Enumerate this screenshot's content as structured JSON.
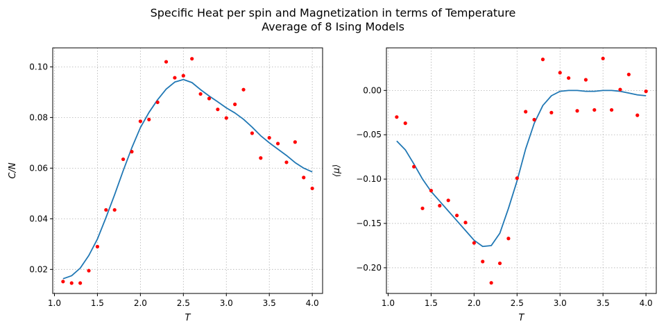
{
  "figure": {
    "title_line1": "Specific Heat per spin and Magnetization in terms of Temperature",
    "title_line2": "Average of 8 Ising Models"
  },
  "colors": {
    "fit_line": "#1f77b4",
    "points": "#ff0000",
    "grid": "#b0b0b0"
  },
  "chart_data": [
    {
      "type": "scatter",
      "xlabel": "T",
      "ylabel": "C/N",
      "xlim": [
        0.98,
        4.12
      ],
      "ylim": [
        0.0105,
        0.1075
      ],
      "xticks": [
        1.0,
        1.5,
        2.0,
        2.5,
        3.0,
        3.5,
        4.0
      ],
      "xtick_labels": [
        "1.0",
        "1.5",
        "2.0",
        "2.5",
        "3.0",
        "3.5",
        "4.0"
      ],
      "yticks": [
        0.02,
        0.04,
        0.06,
        0.08,
        0.1
      ],
      "ytick_labels": [
        "0.02",
        "0.04",
        "0.06",
        "0.08",
        "0.10"
      ],
      "grid": true,
      "series": [
        {
          "kind": "points",
          "x": [
            1.1,
            1.2,
            1.3,
            1.4,
            1.5,
            1.6,
            1.7,
            1.8,
            1.9,
            2.0,
            2.1,
            2.2,
            2.3,
            2.4,
            2.5,
            2.6,
            2.7,
            2.8,
            2.9,
            3.0,
            3.1,
            3.2,
            3.3,
            3.4,
            3.5,
            3.6,
            3.7,
            3.8,
            3.9,
            4.0
          ],
          "y": [
            0.0152,
            0.0146,
            0.0146,
            0.0195,
            0.029,
            0.0435,
            0.0435,
            0.0635,
            0.0665,
            0.0785,
            0.0792,
            0.086,
            0.102,
            0.0957,
            0.0965,
            0.1032,
            0.0893,
            0.0875,
            0.0832,
            0.0798,
            0.0852,
            0.091,
            0.0738,
            0.064,
            0.072,
            0.0697,
            0.0623,
            0.0703,
            0.0563,
            0.052
          ]
        },
        {
          "kind": "line",
          "x": [
            1.1,
            1.2,
            1.3,
            1.4,
            1.5,
            1.6,
            1.7,
            1.8,
            1.9,
            2.0,
            2.1,
            2.2,
            2.3,
            2.4,
            2.5,
            2.6,
            2.7,
            2.8,
            2.9,
            3.0,
            3.1,
            3.2,
            3.3,
            3.4,
            3.5,
            3.6,
            3.7,
            3.8,
            3.9,
            4.0
          ],
          "y": [
            0.0163,
            0.0175,
            0.0205,
            0.0255,
            0.032,
            0.0405,
            0.0495,
            0.059,
            0.068,
            0.076,
            0.082,
            0.087,
            0.0912,
            0.094,
            0.095,
            0.0938,
            0.091,
            0.0885,
            0.0862,
            0.0838,
            0.0818,
            0.0793,
            0.0762,
            0.0728,
            0.07,
            0.0675,
            0.065,
            0.0622,
            0.06,
            0.0585
          ]
        }
      ]
    },
    {
      "type": "scatter",
      "xlabel": "T",
      "ylabel": "⟨μ⟩",
      "xlim": [
        0.98,
        4.12
      ],
      "ylim": [
        -0.229,
        0.048
      ],
      "xticks": [
        1.0,
        1.5,
        2.0,
        2.5,
        3.0,
        3.5,
        4.0
      ],
      "xtick_labels": [
        "1.0",
        "1.5",
        "2.0",
        "2.5",
        "3.0",
        "3.5",
        "4.0"
      ],
      "yticks": [
        -0.2,
        -0.15,
        -0.1,
        -0.05,
        0.0
      ],
      "ytick_labels": [
        "−0.20",
        "−0.15",
        "−0.10",
        "−0.05",
        "0.00"
      ],
      "grid": true,
      "series": [
        {
          "kind": "points",
          "x": [
            1.1,
            1.2,
            1.3,
            1.4,
            1.5,
            1.6,
            1.7,
            1.8,
            1.9,
            2.0,
            2.1,
            2.2,
            2.3,
            2.4,
            2.5,
            2.6,
            2.7,
            2.8,
            2.9,
            3.0,
            3.1,
            3.2,
            3.3,
            3.4,
            3.5,
            3.6,
            3.7,
            3.8,
            3.9,
            4.0
          ],
          "y": [
            -0.03,
            -0.037,
            -0.086,
            -0.133,
            -0.113,
            -0.13,
            -0.124,
            -0.141,
            -0.149,
            -0.172,
            -0.193,
            -0.217,
            -0.195,
            -0.167,
            -0.099,
            -0.024,
            -0.033,
            0.035,
            -0.025,
            0.02,
            0.014,
            -0.023,
            0.012,
            -0.022,
            0.036,
            -0.022,
            0.001,
            0.018,
            -0.028,
            -0.001
          ]
        },
        {
          "kind": "line",
          "x": [
            1.1,
            1.2,
            1.3,
            1.4,
            1.5,
            1.6,
            1.7,
            1.8,
            1.9,
            2.0,
            2.1,
            2.2,
            2.3,
            2.4,
            2.5,
            2.6,
            2.7,
            2.8,
            2.9,
            3.0,
            3.1,
            3.2,
            3.3,
            3.4,
            3.5,
            3.6,
            3.7,
            3.8,
            3.9,
            4.0
          ],
          "y": [
            -0.057,
            -0.067,
            -0.083,
            -0.1,
            -0.114,
            -0.125,
            -0.136,
            -0.147,
            -0.158,
            -0.169,
            -0.176,
            -0.175,
            -0.161,
            -0.133,
            -0.102,
            -0.066,
            -0.037,
            -0.017,
            -0.006,
            -0.001,
            0.0,
            0.0,
            -0.001,
            -0.001,
            0.0,
            0.0,
            -0.001,
            -0.003,
            -0.005,
            -0.006
          ]
        }
      ]
    }
  ]
}
